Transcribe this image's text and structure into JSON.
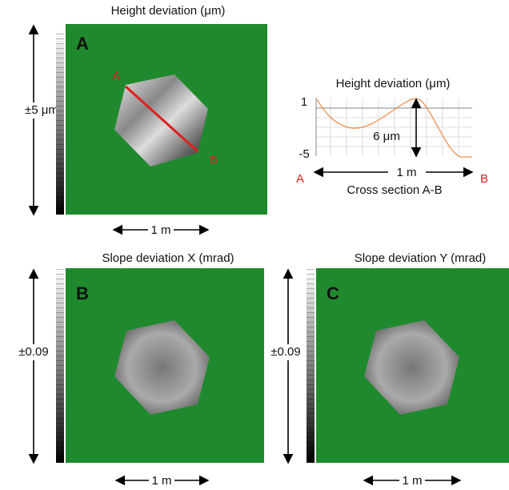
{
  "panels": [
    {
      "label": "A",
      "title": "Height deviation (μm)",
      "range_label": "±5 μm",
      "scale_label": "1 m",
      "point_a": "A",
      "point_b": "B"
    },
    {
      "label": "B",
      "title": "Slope deviation X (mrad)",
      "range_label": "±0.09",
      "scale_label": "1 m"
    },
    {
      "label": "C",
      "title": "Slope deviation Y (mrad)",
      "range_label": "±0.09",
      "scale_label": "1 m"
    }
  ],
  "cross_section": {
    "title": "Height deviation (μm)",
    "ticks": [
      "1",
      "-5"
    ],
    "depth_label": "6 μm",
    "start": "A",
    "end": "B",
    "length_label": "1 m",
    "caption": "Cross section A-B"
  }
}
